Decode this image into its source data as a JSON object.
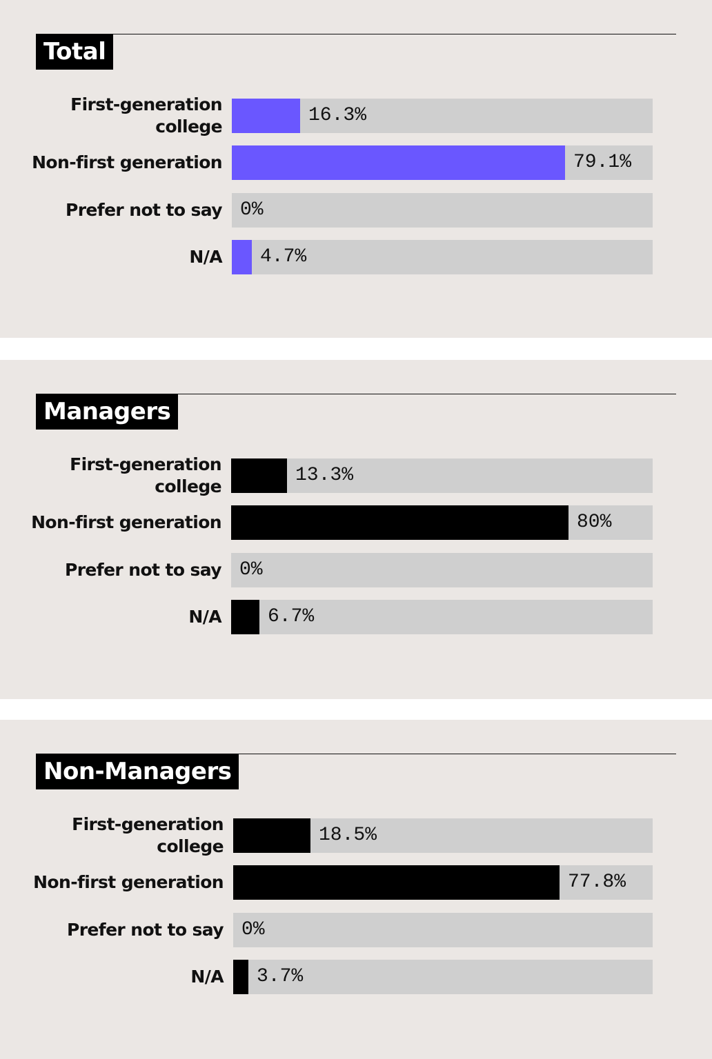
{
  "chart_data": [
    {
      "type": "bar",
      "title": "Total",
      "categories": [
        "First-generation college",
        "Non-first generation",
        "Prefer not to say",
        "N/A"
      ],
      "values": [
        16.3,
        79.1,
        0,
        4.7
      ],
      "value_labels": [
        "16.3%",
        "79.1%",
        "0%",
        "4.7%"
      ],
      "bar_color": "#6a57ff",
      "track_color": "#cfcfcf",
      "xlim": [
        0,
        100
      ],
      "orientation": "horizontal"
    },
    {
      "type": "bar",
      "title": "Managers",
      "categories": [
        "First-generation college",
        "Non-first generation",
        "Prefer not to say",
        "N/A"
      ],
      "values": [
        13.3,
        80,
        0,
        6.7
      ],
      "value_labels": [
        "13.3%",
        "80%",
        "0%",
        "6.7%"
      ],
      "bar_color": "#000000",
      "track_color": "#cfcfcf",
      "xlim": [
        0,
        100
      ],
      "orientation": "horizontal"
    },
    {
      "type": "bar",
      "title": "Non-Managers",
      "categories": [
        "First-generation college",
        "Non-first generation",
        "Prefer not to say",
        "N/A"
      ],
      "values": [
        18.5,
        77.8,
        0,
        3.7
      ],
      "value_labels": [
        "18.5%",
        "77.8%",
        "0%",
        "3.7%"
      ],
      "bar_color": "#000000",
      "track_color": "#cfcfcf",
      "xlim": [
        0,
        100
      ],
      "orientation": "horizontal"
    }
  ]
}
